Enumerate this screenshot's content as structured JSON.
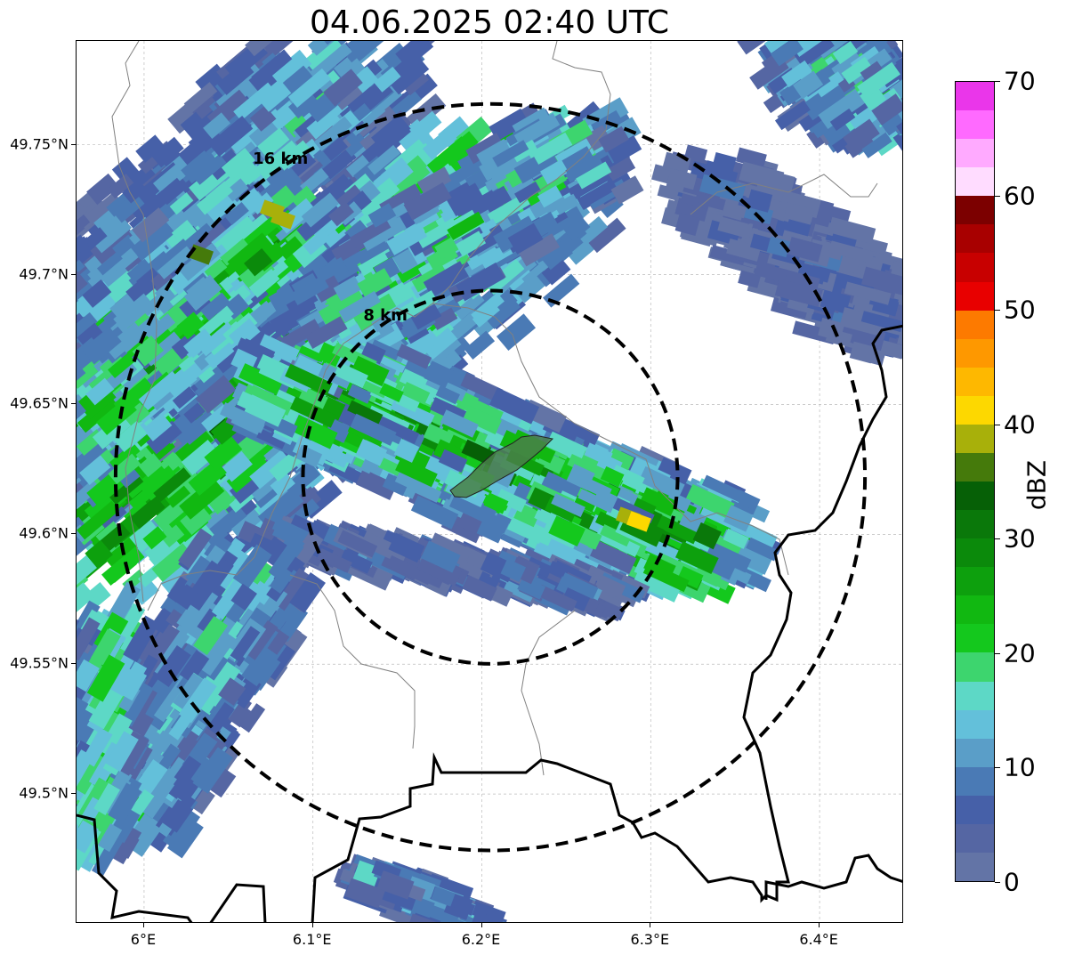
{
  "title": "04.06.2025 02:40 UTC",
  "map": {
    "lon_range": [
      5.96,
      6.45
    ],
    "lat_range": [
      49.45,
      49.79
    ],
    "center": {
      "lon": 6.205,
      "lat": 49.622
    },
    "grid": true,
    "x_ticks": [
      {
        "value": 6.0,
        "label": "6°E"
      },
      {
        "value": 6.1,
        "label": "6.1°E"
      },
      {
        "value": 6.2,
        "label": "6.2°E"
      },
      {
        "value": 6.3,
        "label": "6.3°E"
      },
      {
        "value": 6.4,
        "label": "6.4°E"
      }
    ],
    "y_ticks": [
      {
        "value": 49.75,
        "label": "49.75°N"
      },
      {
        "value": 49.7,
        "label": "49.7°N"
      },
      {
        "value": 49.65,
        "label": "49.65°N"
      },
      {
        "value": 49.6,
        "label": "49.6°N"
      },
      {
        "value": 49.55,
        "label": "49.55°N"
      },
      {
        "value": 49.5,
        "label": "49.5°N"
      }
    ],
    "range_rings": [
      {
        "radius_km": 8,
        "label": "8 km"
      },
      {
        "radius_km": 16,
        "label": "16 km"
      }
    ]
  },
  "colorbar": {
    "label": "dBZ",
    "min": 0,
    "max": 70,
    "ticks": [
      {
        "value": 0,
        "label": "0"
      },
      {
        "value": 10,
        "label": "10"
      },
      {
        "value": 20,
        "label": "20"
      },
      {
        "value": 30,
        "label": "30"
      },
      {
        "value": 40,
        "label": "40"
      },
      {
        "value": 50,
        "label": "50"
      },
      {
        "value": 60,
        "label": "60"
      },
      {
        "value": 70,
        "label": "70"
      }
    ],
    "colors": [
      "#6374a6",
      "#5566a3",
      "#4660a8",
      "#4a7ab5",
      "#5a9ec8",
      "#63c0da",
      "#5dd8c6",
      "#3dd56e",
      "#14c81d",
      "#11b811",
      "#0da00d",
      "#0b8a0b",
      "#0a780a",
      "#066006",
      "#457a0b",
      "#a8b00a",
      "#fdd800",
      "#feb800",
      "#fe9800",
      "#fd7a00",
      "#e80000",
      "#c80000",
      "#a80000",
      "#7c0000",
      "#ffdcff",
      "#ffaaff",
      "#ff6aff",
      "#ea36ea"
    ]
  }
}
